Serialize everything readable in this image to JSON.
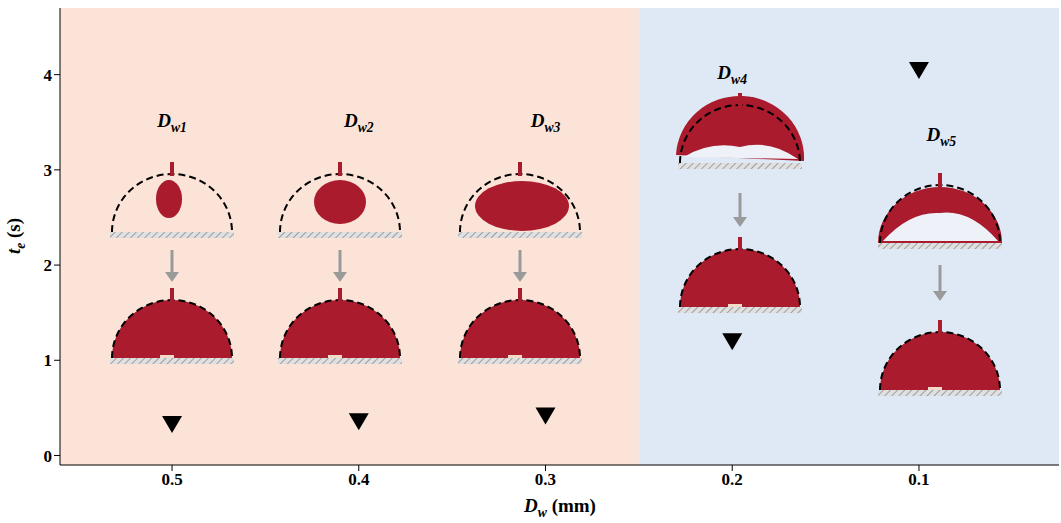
{
  "chart_data": {
    "type": "scatter",
    "x_label": "Dw (mm)",
    "y_label": "te (s)",
    "x": [
      0.5,
      0.4,
      0.3,
      0.2,
      0.1
    ],
    "values": [
      0.33,
      0.36,
      0.42,
      1.2,
      4.05
    ],
    "color": "#000000",
    "marker": "triangle-down",
    "xlim": [
      0.56,
      0.025
    ],
    "xticks": [
      0.5,
      0.4,
      0.3,
      0.2,
      0.1
    ],
    "ylim": [
      -0.1,
      4.7
    ],
    "yticks": [
      0,
      1,
      2,
      3,
      4
    ],
    "grid": false,
    "regions": [
      {
        "from": 0.56,
        "to": 0.25,
        "color": "#fbe4d7"
      },
      {
        "from": 0.25,
        "to": 0.025,
        "color": "#dfe9f6"
      }
    ],
    "annotations": [
      {
        "text": "Dw1",
        "x": 0.5,
        "y": 3.45
      },
      {
        "text": "Dw2",
        "x": 0.4,
        "y": 3.45
      },
      {
        "text": "Dw3",
        "x": 0.3,
        "y": 3.45
      },
      {
        "text": "Dw4",
        "x": 0.2,
        "y": 3.95
      },
      {
        "text": "Dw5",
        "x": 0.088,
        "y": 3.3
      }
    ]
  }
}
